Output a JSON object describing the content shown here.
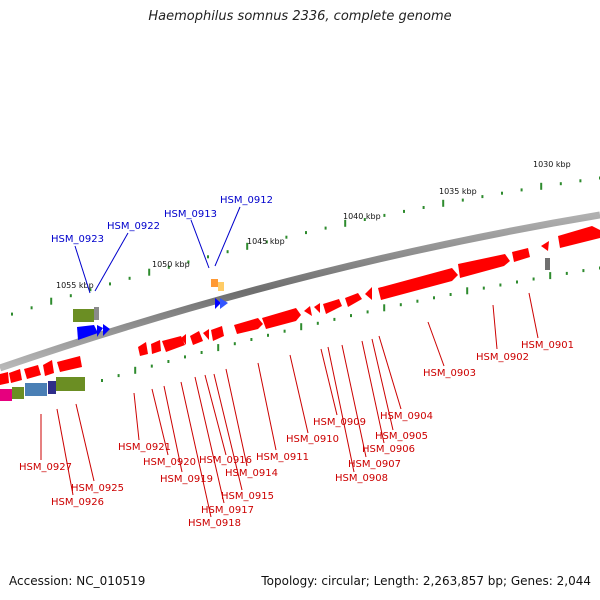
{
  "title": "Haemophilus somnus 2336, complete genome",
  "footer": {
    "accession": "Accession: NC_010519",
    "summary": "Topology: circular; Length: 2,263,857 bp; Genes: 2,044"
  },
  "colors": {
    "backbone": "#8c8c8c",
    "forward_gene": "#ff0000",
    "reverse_gene": "#ff0000",
    "highlight_label": "#0000cc",
    "gene_label": "#cc0000",
    "tick": "#2e8b2e"
  },
  "scale_labels": [
    "1030 kbp",
    "1035 kbp",
    "1040 kbp",
    "1045 kbp",
    "1050 kbp",
    "1055 kbp"
  ],
  "highlighted_genes": [
    "HSM_0912",
    "HSM_0913",
    "HSM_0922",
    "HSM_0923"
  ],
  "gene_labels": [
    "HSM_0901",
    "HSM_0902",
    "HSM_0903",
    "HSM_0904",
    "HSM_0905",
    "HSM_0906",
    "HSM_0907",
    "HSM_0908",
    "HSM_0909",
    "HSM_0910",
    "HSM_0911",
    "HSM_0914",
    "HSM_0915",
    "HSM_0916",
    "HSM_0917",
    "HSM_0918",
    "HSM_0919",
    "HSM_0920",
    "HSM_0921",
    "HSM_0925",
    "HSM_0926",
    "HSM_0927"
  ]
}
